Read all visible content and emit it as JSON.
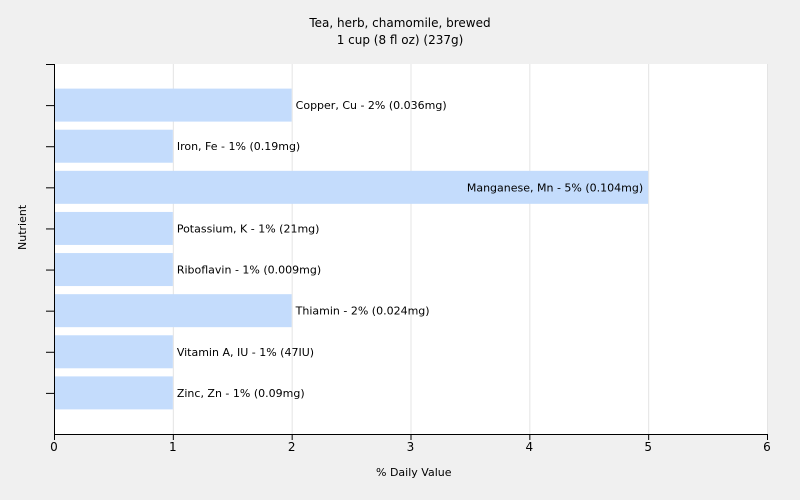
{
  "chart_data": {
    "type": "bar",
    "orientation": "horizontal",
    "title": "Tea, herb, chamomile, brewed",
    "subtitle": "1 cup (8 fl oz) (237g)",
    "xlabel": "% Daily Value",
    "ylabel": "Nutrient",
    "xlim": [
      0,
      6
    ],
    "xticks": [
      0,
      1,
      2,
      3,
      4,
      5,
      6
    ],
    "grid": true,
    "bar_color": "#c4dcfc",
    "categories": [
      "Copper, Cu",
      "Iron, Fe",
      "Manganese, Mn",
      "Potassium, K",
      "Riboflavin",
      "Thiamin",
      "Vitamin A, IU",
      "Zinc, Zn"
    ],
    "values": [
      2,
      1,
      5,
      1,
      1,
      2,
      1,
      1
    ],
    "labels": [
      "Copper, Cu - 2% (0.036mg)",
      "Iron, Fe - 1% (0.19mg)",
      "Manganese, Mn - 5% (0.104mg)",
      "Potassium, K - 1% (21mg)",
      "Riboflavin - 1% (0.009mg)",
      "Thiamin - 2% (0.024mg)",
      "Vitamin A, IU - 1% (47IU)",
      "Zinc, Zn - 1% (0.09mg)"
    ]
  }
}
